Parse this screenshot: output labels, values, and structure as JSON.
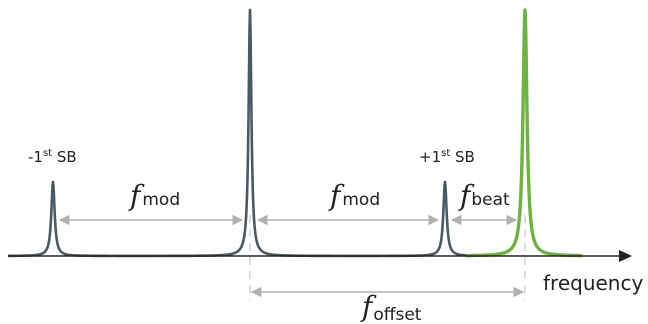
{
  "axis": {
    "label": "frequency"
  },
  "peaks": [
    {
      "name": "minus-first-sideband",
      "label_main": "-1",
      "label_sup": "st",
      "label_tail": " SB"
    },
    {
      "name": "carrier"
    },
    {
      "name": "plus-first-sideband",
      "label_main": "+1",
      "label_sup": "st",
      "label_tail": " SB"
    },
    {
      "name": "offset-laser"
    }
  ],
  "spacings": {
    "mod_left": {
      "symbol": "f",
      "subscript": "mod"
    },
    "mod_right": {
      "symbol": "f",
      "subscript": "mod"
    },
    "beat": {
      "symbol": "f",
      "subscript": "beat"
    },
    "offset": {
      "symbol": "f",
      "subscript": "offset"
    }
  },
  "colors": {
    "modulated_laser": "#4a5a63",
    "offset_laser": "#6db33f",
    "arrow": "#b0b0b0",
    "axis": "#222222"
  }
}
